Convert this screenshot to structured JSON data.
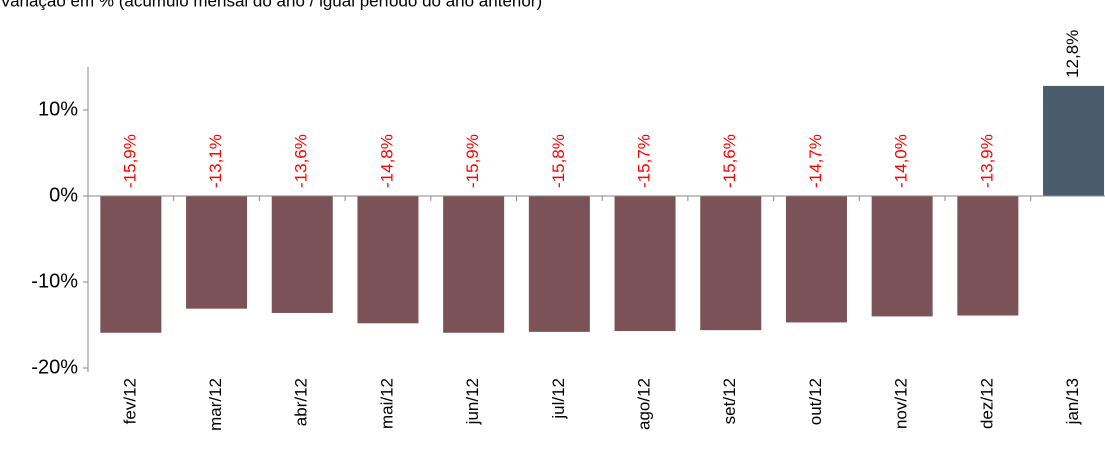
{
  "chart_data": {
    "type": "bar",
    "title": "Variação em % (acúmulo mensal do ano / igual período do ano anterior)",
    "categories": [
      "fev/12",
      "mar/12",
      "abr/12",
      "mai/12",
      "jun/12",
      "jul/12",
      "ago/12",
      "set/12",
      "out/12",
      "nov/12",
      "dez/12",
      "jan/13"
    ],
    "values": [
      -15.9,
      -13.1,
      -13.6,
      -14.8,
      -15.9,
      -15.8,
      -15.7,
      -15.6,
      -14.7,
      -14.0,
      -13.9,
      12.8
    ],
    "value_labels": [
      "-15,9%",
      "-13,1%",
      "-13,6%",
      "-14,8%",
      "-15,9%",
      "-15,8%",
      "-15,7%",
      "-15,6%",
      "-14,7%",
      "-14,0%",
      "-13,9%",
      "12,8%"
    ],
    "colors": [
      "#7a5257",
      "#7a5257",
      "#7a5257",
      "#7a5257",
      "#7a5257",
      "#7a5257",
      "#7a5257",
      "#7a5257",
      "#7a5257",
      "#7a5257",
      "#7a5257",
      "#4a5b6c"
    ],
    "label_colors": [
      "#ff0000",
      "#ff0000",
      "#ff0000",
      "#ff0000",
      "#ff0000",
      "#ff0000",
      "#ff0000",
      "#ff0000",
      "#ff0000",
      "#ff0000",
      "#ff0000",
      "#000000"
    ],
    "ylim": [
      -20,
      15
    ],
    "yticks": [
      {
        "value": -20,
        "label": "-20%"
      },
      {
        "value": -10,
        "label": "-10%"
      },
      {
        "value": 0,
        "label": "0%"
      },
      {
        "value": 10,
        "label": "10%"
      }
    ]
  }
}
